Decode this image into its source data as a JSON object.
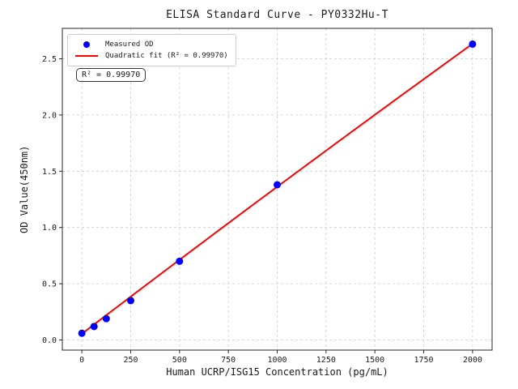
{
  "chart_data": {
    "type": "scatter",
    "title": "ELISA Standard Curve - PY0332Hu-T",
    "xlabel": "Human UCRP/ISG15 Concentration (pg/mL)",
    "ylabel": "OD Value(450nm)",
    "axes": {
      "xlim": [
        -100,
        2100
      ],
      "ylim": [
        -0.09,
        2.77
      ],
      "xticks": [
        0,
        250,
        500,
        750,
        1000,
        1250,
        1500,
        1750,
        2000
      ],
      "yticks": [
        0.0,
        0.5,
        1.0,
        1.5,
        2.0,
        2.5
      ],
      "grid": true,
      "grid_style": "dashed"
    },
    "points": {
      "name": "Measured OD",
      "color": "#0000ff",
      "x": [
        0,
        62.5,
        125,
        250,
        500,
        1000,
        2000
      ],
      "y": [
        0.06,
        0.12,
        0.19,
        0.35,
        0.7,
        1.38,
        2.63
      ]
    },
    "fit": {
      "name": "Quadratic fit",
      "color": "#ff0000",
      "r_squared": "0.99970",
      "coeffs": {
        "a": 0.055,
        "b": 0.001325,
        "c": -1.8e-08
      },
      "x_range": [
        0,
        2000
      ]
    },
    "legend": {
      "position": "upper-left",
      "items": [
        {
          "label": "Measured OD",
          "marker": "dot"
        },
        {
          "label": "Quadratic fit (R² = 0.99970)",
          "marker": "line"
        }
      ]
    },
    "annotation": {
      "text": "R² = 0.99970"
    },
    "colors": {
      "point": "#0000ff",
      "fit_line": "#ff0000",
      "grid": "#cccccc",
      "spine": "#262626",
      "text": "#1a1a1a",
      "background": "#ffffff"
    }
  }
}
